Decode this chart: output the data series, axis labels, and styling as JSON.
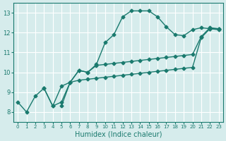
{
  "xlabel": "Humidex (Indice chaleur)",
  "ylabel": "",
  "xlim": [
    -0.5,
    23.5
  ],
  "ylim": [
    7.5,
    13.5
  ],
  "yticks": [
    8,
    9,
    10,
    11,
    12,
    13
  ],
  "xticks": [
    0,
    1,
    2,
    3,
    4,
    5,
    6,
    7,
    8,
    9,
    10,
    11,
    12,
    13,
    14,
    15,
    16,
    17,
    18,
    19,
    20,
    21,
    22,
    23
  ],
  "background_color": "#d6ecec",
  "line_color": "#1a7a6e",
  "grid_color": "#ffffff",
  "series": [
    {
      "x": [
        0,
        1,
        2,
        3,
        4,
        5,
        6,
        7,
        8,
        9,
        10,
        11,
        12,
        13,
        14,
        15,
        16,
        17,
        18,
        19,
        20,
        21,
        22,
        23
      ],
      "y": [
        8.5,
        8.0,
        8.8,
        9.2,
        8.3,
        8.5,
        9.5,
        10.1,
        10.0,
        10.4,
        11.5,
        11.9,
        12.8,
        13.1,
        13.1,
        13.1,
        12.8,
        12.3,
        11.9,
        11.85,
        12.15,
        12.25,
        12.2,
        12.2
      ]
    },
    {
      "x": [
        3,
        4,
        5,
        6,
        7,
        8,
        9,
        10,
        11,
        12,
        13,
        14,
        15,
        16,
        17,
        18,
        19,
        20,
        21,
        22,
        23
      ],
      "y": [
        9.2,
        8.3,
        9.3,
        9.5,
        10.1,
        10.0,
        10.35,
        10.4,
        10.45,
        10.5,
        10.55,
        10.6,
        10.65,
        10.7,
        10.75,
        10.8,
        10.85,
        10.9,
        11.8,
        12.25,
        12.2
      ]
    },
    {
      "x": [
        5,
        6,
        7,
        8,
        9,
        10,
        11,
        12,
        13,
        14,
        15,
        16,
        17,
        18,
        19,
        20,
        21,
        22,
        23
      ],
      "y": [
        8.3,
        9.5,
        9.6,
        9.65,
        9.7,
        9.75,
        9.8,
        9.85,
        9.9,
        9.95,
        10.0,
        10.05,
        10.1,
        10.15,
        10.2,
        10.25,
        11.75,
        12.2,
        12.15
      ]
    }
  ]
}
